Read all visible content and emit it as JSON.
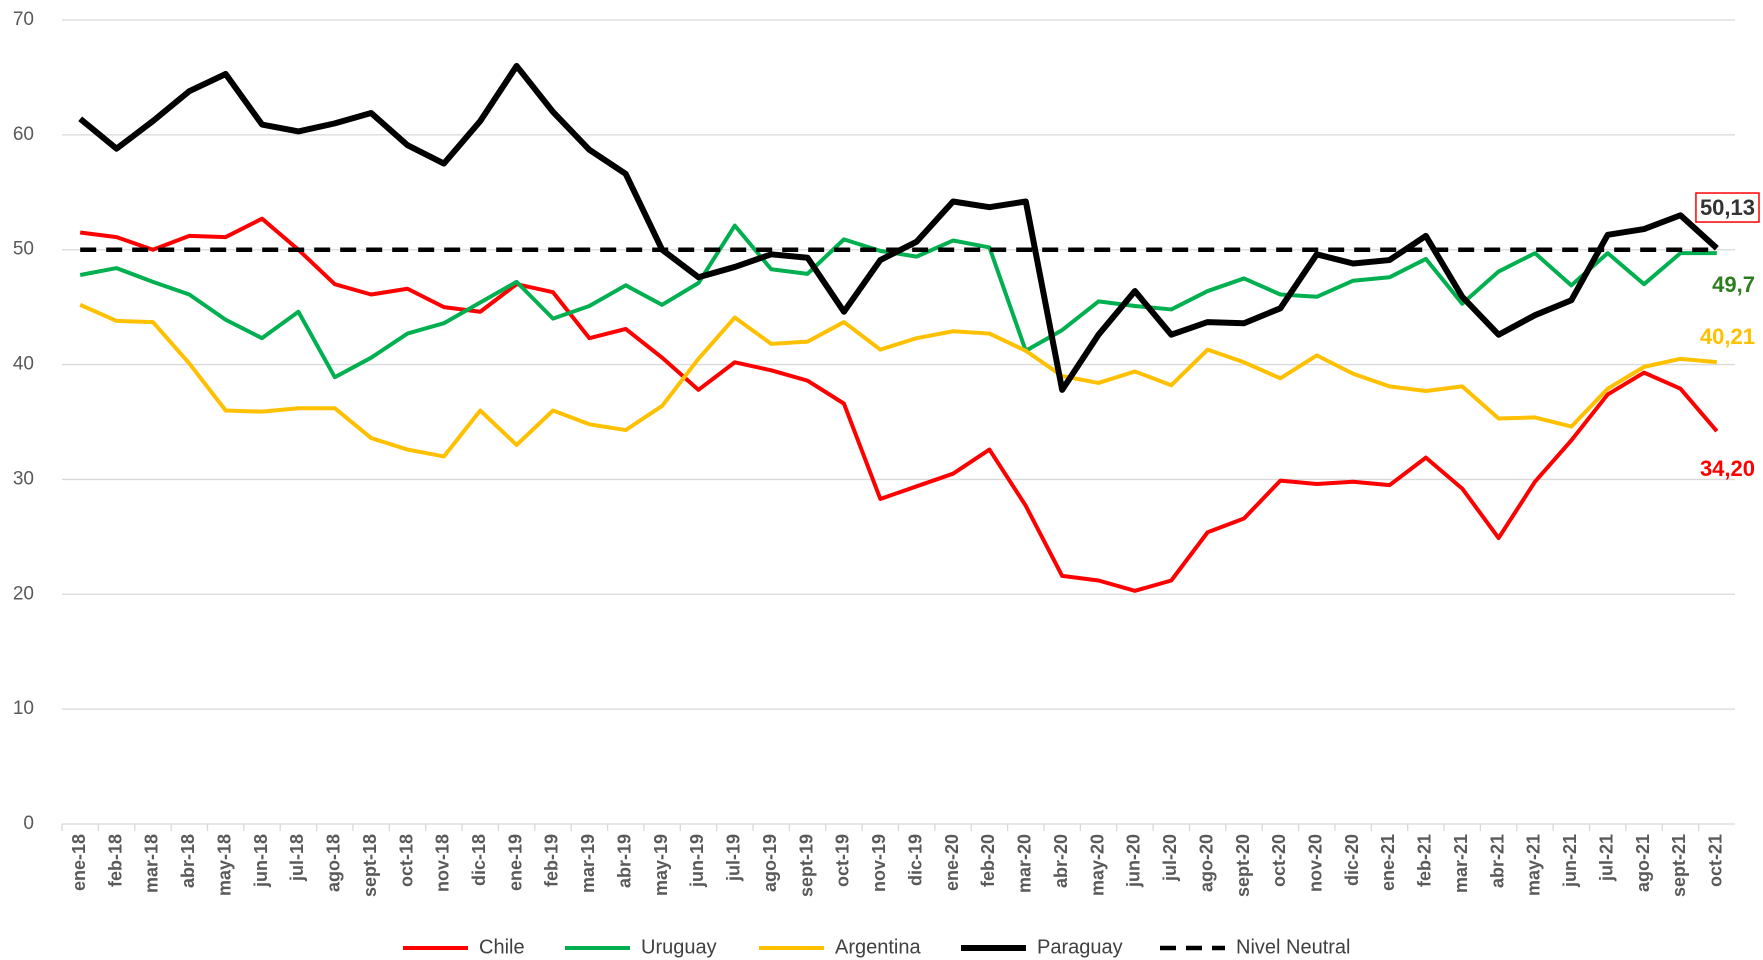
{
  "chart_data": {
    "type": "line",
    "categories": [
      "ene-18",
      "feb-18",
      "mar-18",
      "abr-18",
      "may-18",
      "jun-18",
      "jul-18",
      "ago-18",
      "sept-18",
      "oct-18",
      "nov-18",
      "dic-18",
      "ene-19",
      "feb-19",
      "mar-19",
      "abr-19",
      "may-19",
      "jun-19",
      "jul-19",
      "ago-19",
      "sept-19",
      "oct-19",
      "nov-19",
      "dic-19",
      "ene-20",
      "feb-20",
      "mar-20",
      "abr-20",
      "may-20",
      "jun-20",
      "jul-20",
      "ago-20",
      "sept-20",
      "oct-20",
      "nov-20",
      "dic-20",
      "ene-21",
      "feb-21",
      "mar-21",
      "abr-21",
      "may-21",
      "jun-21",
      "jul-21",
      "ago-21",
      "sept-21",
      "oct-21"
    ],
    "ylim": [
      0,
      70
    ],
    "yticks": [
      0,
      10,
      20,
      30,
      40,
      50,
      60,
      70
    ],
    "grid": true,
    "legend": "bottom",
    "series": [
      {
        "name": "Chile",
        "color": "#ff0000",
        "label_color": "#ff0000",
        "dashed": false,
        "values": [
          51.5,
          51.1,
          50.0,
          51.2,
          51.1,
          52.7,
          50.0,
          47.0,
          46.1,
          46.6,
          45.0,
          44.6,
          47.0,
          46.3,
          42.3,
          43.1,
          40.6,
          37.8,
          40.2,
          39.5,
          38.6,
          36.6,
          28.3,
          29.4,
          30.5,
          32.6,
          27.7,
          21.6,
          21.2,
          20.3,
          21.2,
          25.4,
          26.6,
          29.9,
          29.6,
          29.8,
          29.5,
          31.9,
          29.2,
          24.9,
          29.8,
          33.4,
          37.4,
          39.3,
          37.9,
          34.2
        ],
        "value_labels": {
          "45": "34,20"
        }
      },
      {
        "name": "Uruguay",
        "color": "#00b050",
        "label_color": "#2e7d1e",
        "dashed": false,
        "values": [
          47.8,
          48.4,
          47.2,
          46.1,
          43.9,
          42.3,
          44.6,
          38.9,
          40.6,
          42.7,
          43.6,
          45.4,
          47.2,
          44.0,
          45.1,
          46.9,
          45.2,
          47.1,
          52.1,
          48.3,
          47.9,
          50.9,
          49.9,
          49.4,
          50.8,
          50.2,
          41.2,
          43.0,
          45.5,
          45.1,
          44.8,
          46.4,
          47.5,
          46.1,
          45.9,
          47.3,
          47.6,
          49.2,
          45.3,
          48.1,
          49.7,
          46.9,
          49.7,
          47.0,
          49.7,
          49.7
        ],
        "value_labels": {
          "45": "49,7"
        }
      },
      {
        "name": "Argentina",
        "color": "#ffc000",
        "label_color": "#ffc000",
        "dashed": false,
        "values": [
          45.2,
          43.8,
          43.7,
          40.1,
          36.0,
          35.9,
          36.2,
          36.2,
          33.6,
          32.6,
          32.0,
          36.0,
          33.0,
          36.0,
          34.8,
          34.3,
          36.4,
          40.5,
          44.1,
          41.8,
          42.0,
          43.7,
          41.3,
          42.3,
          42.9,
          42.7,
          41.2,
          39.0,
          38.4,
          39.4,
          38.2,
          41.3,
          40.2,
          38.8,
          40.8,
          39.2,
          38.1,
          37.7,
          38.1,
          35.3,
          35.4,
          34.6,
          37.9,
          39.8,
          40.5,
          40.21
        ],
        "value_labels": {
          "45": "40,21"
        }
      },
      {
        "name": "Paraguay",
        "color": "#000000",
        "label_color": "#333333",
        "dashed": false,
        "values": [
          61.4,
          58.8,
          61.2,
          63.8,
          65.3,
          60.9,
          60.3,
          61.0,
          61.9,
          59.1,
          57.5,
          61.2,
          66.0,
          62.0,
          58.7,
          56.6,
          50.0,
          47.6,
          48.5,
          49.6,
          49.3,
          44.6,
          49.1,
          50.7,
          54.2,
          53.7,
          54.2,
          37.8,
          42.6,
          46.4,
          42.6,
          43.7,
          43.6,
          44.9,
          49.6,
          48.8,
          49.1,
          51.2,
          45.9,
          42.6,
          44.3,
          45.6,
          51.3,
          51.8,
          53.0,
          50.13
        ],
        "value_labels": {
          "45": "50,13"
        }
      },
      {
        "name": "Nivel Neutral",
        "color": "#000000",
        "dashed": true,
        "values": [
          50,
          50,
          50,
          50,
          50,
          50,
          50,
          50,
          50,
          50,
          50,
          50,
          50,
          50,
          50,
          50,
          50,
          50,
          50,
          50,
          50,
          50,
          50,
          50,
          50,
          50,
          50,
          50,
          50,
          50,
          50,
          50,
          50,
          50,
          50,
          50,
          50,
          50,
          50,
          50,
          50,
          50,
          50,
          50,
          50,
          50
        ]
      }
    ]
  }
}
